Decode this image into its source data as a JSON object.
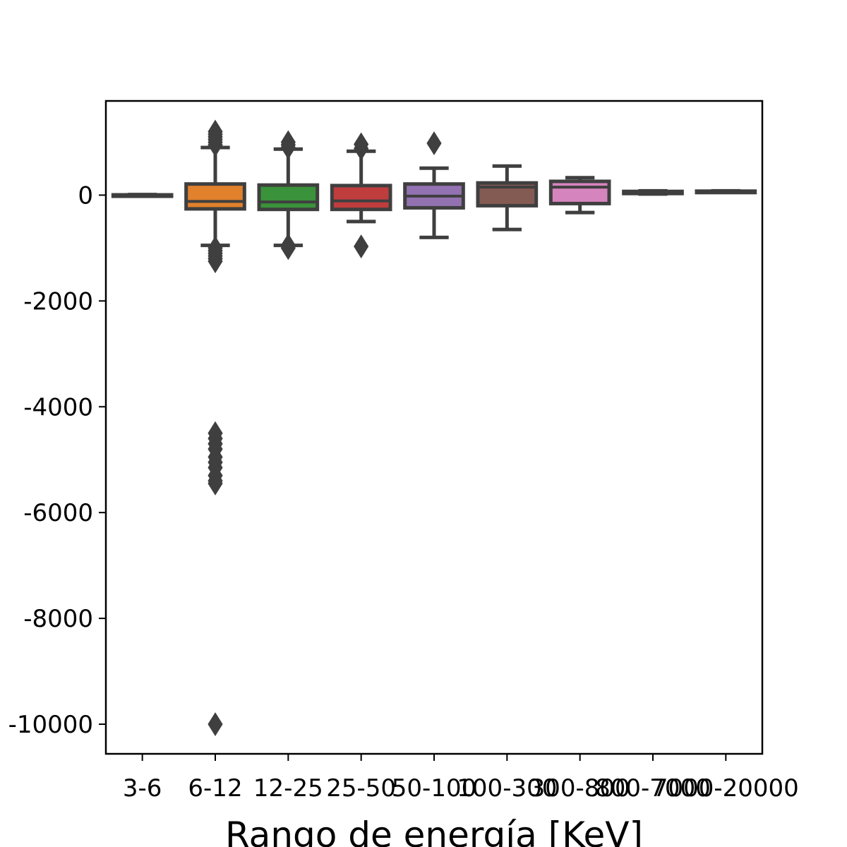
{
  "chart_data": {
    "type": "box",
    "xlabel": "Rango de energía [KeV]",
    "ylabel": "",
    "ylim": [
      -10560,
      1780
    ],
    "yticks": [
      0,
      -2000,
      -4000,
      -6000,
      -8000,
      -10000
    ],
    "ytick_labels": [
      "0",
      "-2000",
      "-4000",
      "-6000",
      "-8000",
      "-10000"
    ],
    "grid": false,
    "categories": [
      "3-6",
      "6-12",
      "12-25",
      "25-50",
      "50-100",
      "100-300",
      "300-800",
      "800-7000",
      "7000-20000"
    ],
    "boxes": [
      {
        "category": "3-6",
        "color": "#3274a1",
        "whisker_low": -10,
        "q1": -5,
        "median": 0,
        "q3": 5,
        "whisker_high": 10,
        "outliers": []
      },
      {
        "category": "6-12",
        "color": "#e1812c",
        "whisker_low": -950,
        "q1": -260,
        "median": -120,
        "q3": 210,
        "whisker_high": 900,
        "outliers": [
          -1000,
          -1050,
          -1100,
          -1150,
          -1200,
          -1250,
          950,
          1000,
          1050,
          1100,
          1150,
          1200,
          -4500,
          -4600,
          -4700,
          -4800,
          -4950,
          -5050,
          -5150,
          -5300,
          -5400,
          -5450,
          -10000
        ]
      },
      {
        "category": "12-25",
        "color": "#3a923a",
        "whisker_low": -950,
        "q1": -270,
        "median": -130,
        "q3": 190,
        "whisker_high": 870,
        "outliers": [
          -950,
          -1000,
          900,
          950,
          1000
        ]
      },
      {
        "category": "25-50",
        "color": "#c03d3e",
        "whisker_low": -500,
        "q1": -270,
        "median": -110,
        "q3": 180,
        "whisker_high": 830,
        "outliers": [
          -970,
          880,
          960
        ]
      },
      {
        "category": "50-100",
        "color": "#9372b2",
        "whisker_low": -800,
        "q1": -240,
        "median": -20,
        "q3": 210,
        "whisker_high": 510,
        "outliers": [
          980
        ]
      },
      {
        "category": "100-300",
        "color": "#845b53",
        "whisker_low": -650,
        "q1": -200,
        "median": 150,
        "q3": 230,
        "whisker_high": 550,
        "outliers": []
      },
      {
        "category": "300-800",
        "color": "#d684bd",
        "whisker_low": -330,
        "q1": -160,
        "median": 150,
        "q3": 260,
        "whisker_high": 330,
        "outliers": []
      },
      {
        "category": "800-7000",
        "color": "#7f7f7f",
        "whisker_low": 20,
        "q1": 30,
        "median": 50,
        "q3": 70,
        "whisker_high": 80,
        "outliers": []
      },
      {
        "category": "7000-20000",
        "color": "#a9aa35",
        "whisker_low": 60,
        "q1": 65,
        "median": 70,
        "q3": 75,
        "whisker_high": 80,
        "outliers": []
      }
    ],
    "edge_color": "#3f3f3f"
  }
}
